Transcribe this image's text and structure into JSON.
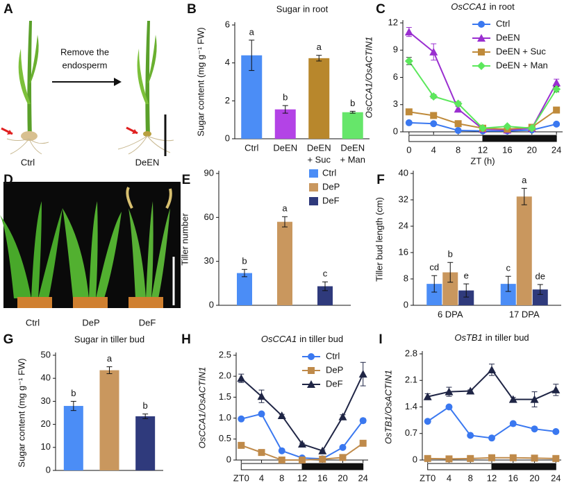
{
  "panel_labels": [
    "A",
    "B",
    "C",
    "D",
    "E",
    "F",
    "G",
    "H",
    "I"
  ],
  "photo_a": {
    "labels": [
      "Ctrl",
      "DeEN"
    ],
    "annotation": [
      "Remove the",
      "endosperm"
    ]
  },
  "photo_d": {
    "labels": [
      "Ctrl",
      "DeP",
      "DeF"
    ]
  },
  "chart_data": [
    {
      "type": "bar",
      "title": "Sugar in root",
      "ylabel": "Sugar content (mg g⁻¹ FW)",
      "categories": [
        [
          "Ctrl"
        ],
        [
          "DeEN"
        ],
        [
          "DeEN",
          "+ Suc"
        ],
        [
          "DeEN",
          "+ Man"
        ]
      ],
      "values": [
        4.4,
        1.55,
        4.25,
        1.4
      ],
      "errors": [
        0.8,
        0.2,
        0.15,
        0.05
      ],
      "letters": [
        "a",
        "b",
        "a",
        "b"
      ],
      "colors": [
        "#4b8df6",
        "#b343e6",
        "#b8872c",
        "#66e66a"
      ],
      "ylim": [
        0,
        6
      ],
      "yticks": [
        0,
        2,
        4,
        6
      ]
    },
    {
      "type": "line",
      "title": {
        "gene": "OsCCA1",
        "text": "in root"
      },
      "ylabel": "OsCCA1/OsACTIN1",
      "xlabel": "ZT (h)",
      "x": [
        0,
        4,
        8,
        12,
        16,
        20,
        24
      ],
      "xlim": [
        -1,
        25
      ],
      "xticks": [
        0,
        4,
        8,
        12,
        16,
        20,
        24
      ],
      "ylim": [
        0,
        12
      ],
      "yticks": [
        0,
        3,
        6,
        9,
        12
      ],
      "legend": "upper right",
      "photoperiod": {
        "light": [
          0,
          12
        ],
        "dark": [
          12,
          24
        ]
      },
      "series": [
        {
          "name": "Ctrl",
          "color": "#3a78f0",
          "marker": "circle",
          "values": [
            1.0,
            0.9,
            0.15,
            0.1,
            0.1,
            0.2,
            0.85
          ],
          "errors": [
            0.05,
            0.05,
            0.03,
            0.02,
            0.02,
            0.03,
            0.08
          ]
        },
        {
          "name": "DeEN",
          "color": "#9a2fd0",
          "marker": "triangle",
          "values": [
            11.0,
            8.8,
            2.5,
            0.3,
            0.2,
            0.4,
            5.4
          ],
          "errors": [
            0.5,
            0.9,
            0.3,
            0.05,
            0.05,
            0.1,
            0.4
          ]
        },
        {
          "name": "DeEN + Suc",
          "color": "#bf8a3a",
          "marker": "square",
          "values": [
            2.2,
            1.8,
            0.9,
            0.4,
            0.3,
            0.5,
            2.4
          ],
          "errors": [
            0.1,
            0.1,
            0.1,
            0.05,
            0.05,
            0.05,
            0.15
          ]
        },
        {
          "name": "DeEN + Man",
          "color": "#5ce85c",
          "marker": "diamond",
          "values": [
            7.8,
            3.9,
            3.1,
            0.4,
            0.6,
            0.4,
            4.7
          ],
          "errors": [
            0.4,
            0.2,
            0.2,
            0.05,
            0.1,
            0.05,
            0.3
          ]
        }
      ]
    },
    {
      "type": "bar",
      "ylabel": "Tiller number",
      "categories": [
        null
      ],
      "ylim": [
        0,
        90
      ],
      "yticks": [
        0,
        30,
        60,
        90
      ],
      "legend": "upper right",
      "series": [
        {
          "name": "Ctrl",
          "color": "#4b8df6",
          "values": [
            22
          ],
          "errors": [
            2.5
          ],
          "letters": [
            "b"
          ]
        },
        {
          "name": "DeP",
          "color": "#c9975e",
          "values": [
            57
          ],
          "errors": [
            3.5
          ],
          "letters": [
            "a"
          ]
        },
        {
          "name": "DeF",
          "color": "#2f3a7c",
          "values": [
            13
          ],
          "errors": [
            3
          ],
          "letters": [
            "c"
          ]
        }
      ]
    },
    {
      "type": "bar",
      "ylabel": "Tiller bud length (cm)",
      "categories": [
        "6 DPA",
        "17 DPA"
      ],
      "ylim": [
        0,
        40
      ],
      "yticks": [
        0,
        8,
        16,
        24,
        32,
        40
      ],
      "series": [
        {
          "name": "Ctrl",
          "color": "#4b8df6",
          "values": [
            6.5,
            6.5
          ],
          "errors": [
            2.5,
            2.3
          ],
          "letters": [
            "cd",
            "c"
          ]
        },
        {
          "name": "DeP",
          "color": "#c9975e",
          "values": [
            10,
            33
          ],
          "errors": [
            3,
            2.5
          ],
          "letters": [
            "b",
            "a"
          ]
        },
        {
          "name": "DeF",
          "color": "#2f3a7c",
          "values": [
            4.5,
            4.8
          ],
          "errors": [
            2,
            1.5
          ],
          "letters": [
            "e",
            "de"
          ]
        }
      ]
    },
    {
      "type": "bar",
      "title": "Sugar in tiller bud",
      "ylabel": "Sugar content (mg g⁻¹ FW)",
      "categories": [
        null,
        null,
        null
      ],
      "values": [
        28,
        43.5,
        23.5
      ],
      "errors": [
        2,
        1.5,
        1
      ],
      "letters": [
        "b",
        "a",
        "b"
      ],
      "colors": [
        "#4b8df6",
        "#c9975e",
        "#2f3a7c"
      ],
      "ylim": [
        0,
        50
      ],
      "yticks": [
        0,
        10,
        20,
        30,
        40,
        50
      ]
    },
    {
      "type": "line",
      "title": {
        "gene": "OsCCA1",
        "text": "in tiller bud"
      },
      "ylabel": "OsCCA1/OsACTIN1",
      "x": [
        0,
        4,
        8,
        12,
        16,
        20,
        24
      ],
      "xlim": [
        -1,
        25
      ],
      "xticks": [
        {
          "value": 0,
          "label": "ZT0"
        },
        4,
        8,
        12,
        16,
        20,
        24
      ],
      "ylim": [
        0,
        2.5
      ],
      "yticks": [
        0,
        0.5,
        {
          "value": 1,
          "label": "1.0"
        },
        1.5,
        {
          "value": 2,
          "label": "2.0"
        },
        2.5
      ],
      "legend": "upper center",
      "photoperiod": {
        "light": [
          0,
          12
        ],
        "dark": [
          12,
          24
        ]
      },
      "series": [
        {
          "name": "Ctrl",
          "color": "#3a78f0",
          "marker": "circle",
          "values": [
            0.98,
            1.1,
            0.22,
            0.05,
            0.03,
            0.3,
            0.94
          ],
          "errors": [
            0.02,
            0.03,
            0.02,
            0.01,
            0.01,
            0.02,
            0.05
          ]
        },
        {
          "name": "DeP",
          "color": "#bf8a4a",
          "marker": "square",
          "values": [
            0.35,
            0.18,
            0.0,
            0.0,
            0.02,
            0.06,
            0.4
          ],
          "errors": [
            0.02,
            0.02,
            0.01,
            0.01,
            0.01,
            0.01,
            0.04
          ]
        },
        {
          "name": "DeF",
          "color": "#1f2545",
          "marker": "triangle",
          "values": [
            1.95,
            1.52,
            1.06,
            0.38,
            0.22,
            1.03,
            2.05
          ],
          "errors": [
            0.1,
            0.15,
            0.03,
            0.02,
            0.02,
            0.05,
            0.28
          ]
        }
      ]
    },
    {
      "type": "line",
      "title": {
        "gene": "OsTB1",
        "text": "in tiller bud"
      },
      "ylabel": "OsTB1/OsACTIN1",
      "x": [
        0,
        4,
        8,
        12,
        16,
        20,
        24
      ],
      "xlim": [
        -1,
        25
      ],
      "xticks": [
        {
          "value": 0,
          "label": "ZT0"
        },
        4,
        8,
        12,
        16,
        20,
        24
      ],
      "ylim": [
        0,
        2.8
      ],
      "yticks": [
        0,
        0.7,
        1.4,
        2.1,
        2.8
      ],
      "photoperiod": {
        "light": [
          0,
          12
        ],
        "dark": [
          12,
          24
        ]
      },
      "series": [
        {
          "name": "Ctrl",
          "color": "#3a78f0",
          "marker": "circle",
          "values": [
            1.02,
            1.4,
            0.65,
            0.58,
            0.96,
            0.82,
            0.75
          ],
          "errors": [
            0.04,
            0.03,
            0.02,
            0.02,
            0.03,
            0.03,
            0.02
          ]
        },
        {
          "name": "DeP",
          "color": "#bf8a4a",
          "marker": "square",
          "values": [
            0.04,
            0.03,
            0.04,
            0.06,
            0.06,
            0.05,
            0.04
          ],
          "errors": [
            0.01,
            0.01,
            0.01,
            0.01,
            0.01,
            0.01,
            0.01
          ]
        },
        {
          "name": "DeF",
          "color": "#1f2545",
          "marker": "triangle",
          "values": [
            1.67,
            1.8,
            1.82,
            2.38,
            1.6,
            1.6,
            1.85
          ],
          "errors": [
            0.08,
            0.12,
            0.03,
            0.15,
            0.05,
            0.2,
            0.15
          ]
        }
      ]
    }
  ]
}
